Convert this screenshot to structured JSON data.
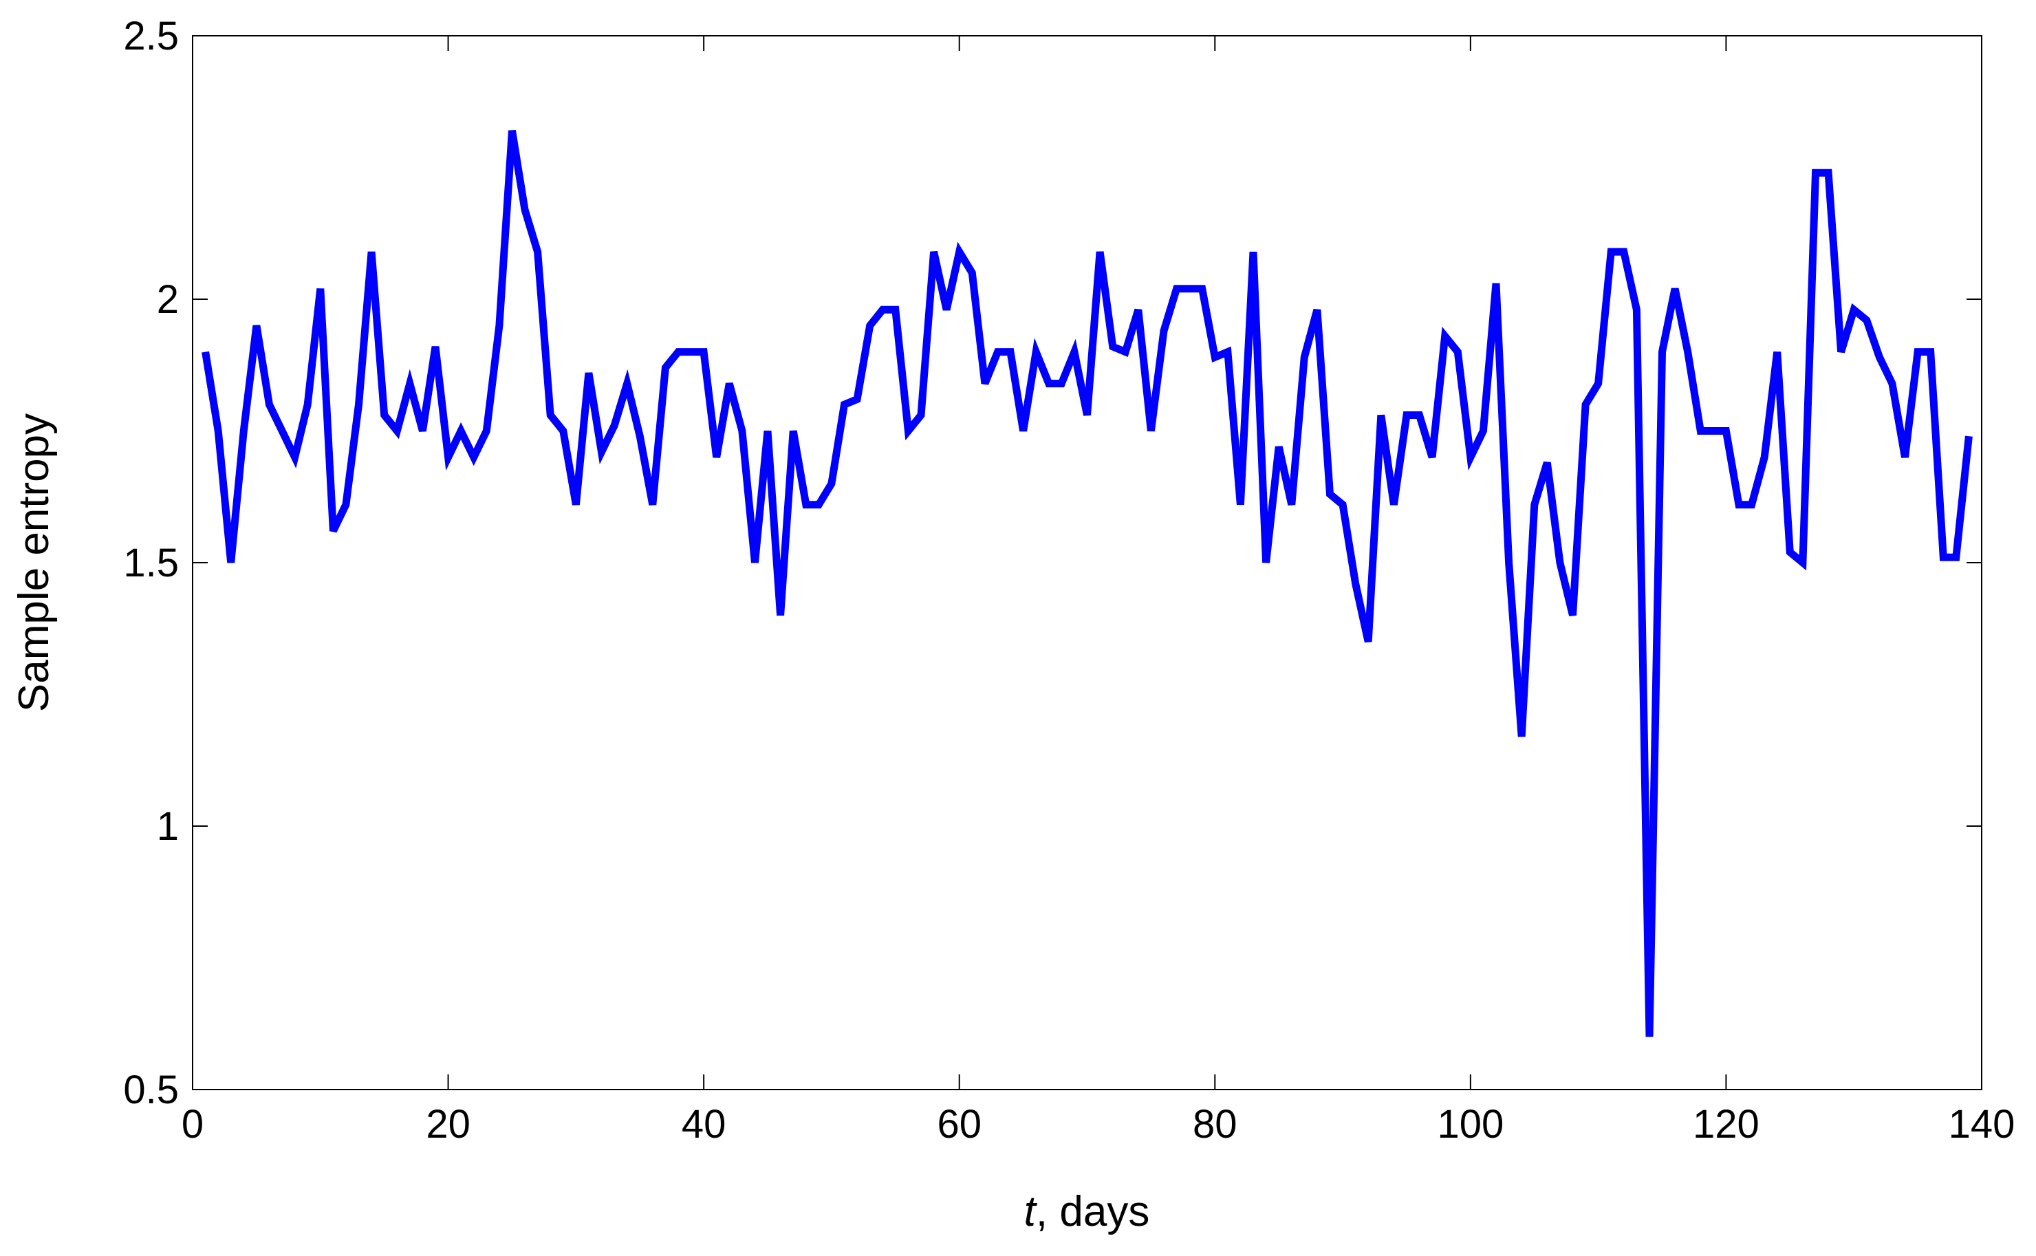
{
  "chart_data": {
    "type": "line",
    "title": "",
    "xlabel_var": "t",
    "xlabel_rest": ", days",
    "ylabel": "Sample entropy",
    "xlim": [
      0,
      140
    ],
    "ylim": [
      0.5,
      2.5
    ],
    "xticks": [
      0,
      20,
      40,
      60,
      80,
      100,
      120,
      140
    ],
    "xtick_labels": [
      "0",
      "20",
      "40",
      "60",
      "80",
      "100",
      "120",
      "140"
    ],
    "yticks": [
      0.5,
      1,
      1.5,
      2,
      2.5
    ],
    "ytick_labels": [
      "0.5",
      "1",
      "1.5",
      "2",
      "2.5"
    ],
    "grid": false,
    "line_color": "#0000ff",
    "series": [
      {
        "x": [
          1,
          2,
          3,
          4,
          5,
          6,
          7,
          8,
          9,
          10,
          11,
          12,
          13,
          14,
          15,
          16,
          17,
          18,
          19,
          20,
          21,
          22,
          23,
          24,
          25,
          26,
          27,
          28,
          29,
          30,
          31,
          32,
          33,
          34,
          35,
          36,
          37,
          38,
          39,
          40,
          41,
          42,
          43,
          44,
          45,
          46,
          47,
          48,
          49,
          50,
          51,
          52,
          53,
          54,
          55,
          56,
          57,
          58,
          59,
          60,
          61,
          62,
          63,
          64,
          65,
          66,
          67,
          68,
          69,
          70,
          71,
          72,
          73,
          74,
          75,
          76,
          77,
          78,
          79,
          80,
          81,
          82,
          83,
          84,
          85,
          86,
          87,
          88,
          89,
          90,
          91,
          92,
          93,
          94,
          95,
          96,
          97,
          98,
          99,
          100,
          101,
          102,
          103,
          104,
          105,
          106,
          107,
          108,
          109,
          110,
          111,
          112,
          113,
          114,
          115,
          116,
          117,
          118,
          119,
          120,
          121,
          122,
          123,
          124,
          125,
          126,
          127,
          128,
          129,
          130,
          131,
          132,
          133,
          134,
          135,
          136,
          137,
          138,
          139
        ],
        "y": [
          1.9,
          1.75,
          1.5,
          1.75,
          1.95,
          1.8,
          1.75,
          1.7,
          1.8,
          2.02,
          1.56,
          1.61,
          1.8,
          2.09,
          1.78,
          1.75,
          1.84,
          1.75,
          1.91,
          1.7,
          1.75,
          1.7,
          1.75,
          1.95,
          2.32,
          2.17,
          2.09,
          1.78,
          1.75,
          1.61,
          1.86,
          1.71,
          1.76,
          1.84,
          1.74,
          1.61,
          1.87,
          1.9,
          1.9,
          1.9,
          1.7,
          1.84,
          1.75,
          1.5,
          1.75,
          1.4,
          1.75,
          1.61,
          1.61,
          1.65,
          1.8,
          1.81,
          1.95,
          1.98,
          1.98,
          1.75,
          1.78,
          2.09,
          1.98,
          2.09,
          2.05,
          1.84,
          1.9,
          1.9,
          1.75,
          1.9,
          1.84,
          1.84,
          1.9,
          1.78,
          2.09,
          1.91,
          1.9,
          1.98,
          1.75,
          1.94,
          2.02,
          2.02,
          2.02,
          1.89,
          1.9,
          1.61,
          2.09,
          1.5,
          1.72,
          1.61,
          1.89,
          1.98,
          1.63,
          1.61,
          1.46,
          1.35,
          1.78,
          1.61,
          1.78,
          1.78,
          1.7,
          1.93,
          1.9,
          1.7,
          1.75,
          2.03,
          1.5,
          1.17,
          1.61,
          1.69,
          1.5,
          1.4,
          1.8,
          1.84,
          2.09,
          2.09,
          1.98,
          0.6,
          1.9,
          2.02,
          1.9,
          1.75,
          1.75,
          1.75,
          1.61,
          1.61,
          1.7,
          1.9,
          1.52,
          1.5,
          2.24,
          2.24,
          1.9,
          1.98,
          1.96,
          1.89,
          1.84,
          1.7,
          1.9,
          1.9,
          1.51,
          1.51,
          1.74
        ]
      }
    ]
  }
}
